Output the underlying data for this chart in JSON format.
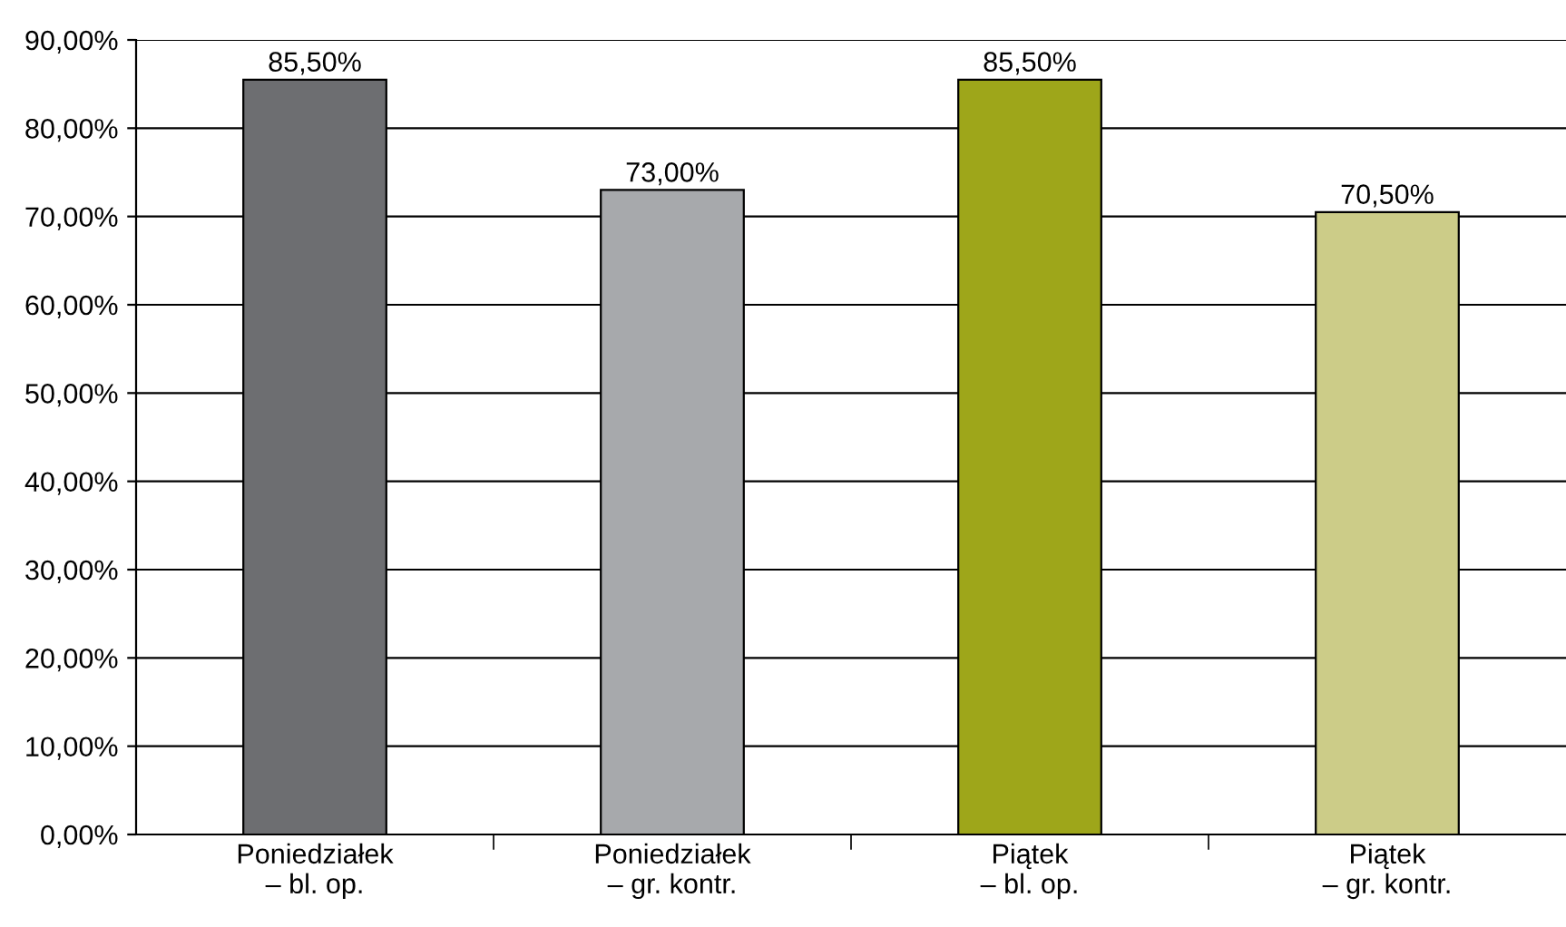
{
  "chart_data": {
    "type": "bar",
    "categories": [
      "Poniedziałek\n– bl. op.",
      "Poniedziałek\n– gr. kontr.",
      "Piątek\n– bl. op.",
      "Piątek\n– gr. kontr."
    ],
    "values": [
      85.5,
      73,
      85.5,
      70.5
    ],
    "colors": [
      "#6d6e71",
      "#a7a9ac",
      "#9ea61a",
      "#cccc88"
    ],
    "value_labels": [
      "85,50%",
      "73,00%",
      "85,50%",
      "70,50%"
    ],
    "ylim": [
      0,
      90
    ],
    "yticks": [
      {
        "value": 0,
        "label": "0,00%"
      },
      {
        "value": 10,
        "label": "10,00%"
      },
      {
        "value": 20,
        "label": "20,00%"
      },
      {
        "value": 30,
        "label": "30,00%"
      },
      {
        "value": 40,
        "label": "40,00%"
      },
      {
        "value": 50,
        "label": "50,00%"
      },
      {
        "value": 60,
        "label": "60,00%"
      },
      {
        "value": 70,
        "label": "70,00%"
      },
      {
        "value": 80,
        "label": "80,00%"
      },
      {
        "value": 90,
        "label": "90,00%"
      }
    ],
    "grid": "y"
  }
}
